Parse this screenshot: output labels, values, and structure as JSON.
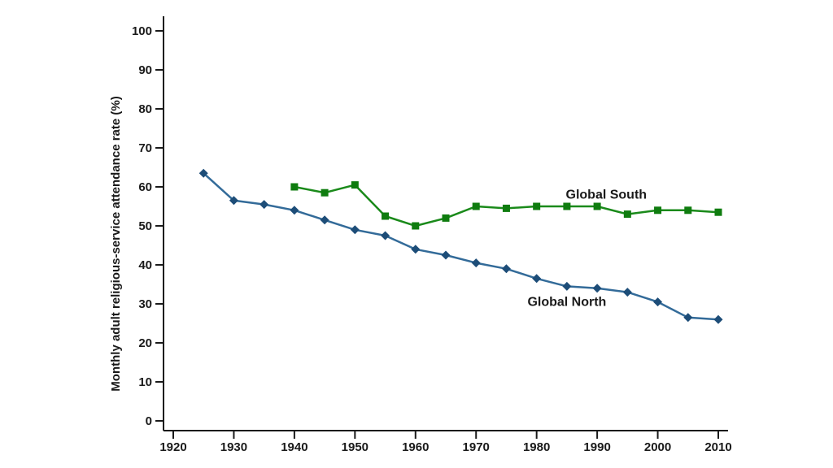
{
  "figure": {
    "background": "#ffffff"
  },
  "chart_data": {
    "type": "line",
    "title": "",
    "xlabel": "",
    "ylabel": "Monthly adult religious-service attendance rate (%)",
    "xlim": [
      1920,
      2010
    ],
    "ylim": [
      0,
      100
    ],
    "x_ticks": [
      1920,
      1930,
      1940,
      1950,
      1960,
      1970,
      1980,
      1990,
      2000,
      2010
    ],
    "y_ticks": [
      0,
      10,
      20,
      30,
      40,
      50,
      60,
      70,
      80,
      90,
      100
    ],
    "grid": false,
    "legend_position": "inline-labels",
    "axis_color": "#1a1a1a",
    "text_color": "#1a1a1a",
    "series": [
      {
        "name": "Global North",
        "marker": "diamond",
        "line_color": "#336b99",
        "marker_color": "#1d4d78",
        "x": [
          1925,
          1930,
          1935,
          1940,
          1945,
          1950,
          1955,
          1960,
          1965,
          1970,
          1975,
          1980,
          1985,
          1990,
          1995,
          2000,
          2005,
          2010
        ],
        "values": [
          63.5,
          56.5,
          55.5,
          54,
          51.5,
          49,
          47.5,
          44,
          42.5,
          40.5,
          39,
          36.5,
          34.5,
          34,
          33,
          30.5,
          26.5,
          26
        ],
        "label": {
          "text": "Global North",
          "x": 1985,
          "y": 30.5
        }
      },
      {
        "name": "Global South",
        "marker": "square",
        "line_color": "#1a8a1a",
        "marker_color": "#0f7c0f",
        "x": [
          1940,
          1945,
          1950,
          1955,
          1960,
          1965,
          1970,
          1975,
          1980,
          1985,
          1990,
          1995,
          2000,
          2005,
          2010
        ],
        "values": [
          60,
          58.5,
          60.5,
          52.5,
          50,
          52,
          55,
          54.5,
          55,
          55,
          55,
          53,
          54,
          54,
          53.5
        ],
        "label": {
          "text": "Global South",
          "x": 1991.5,
          "y": 58
        }
      }
    ]
  }
}
